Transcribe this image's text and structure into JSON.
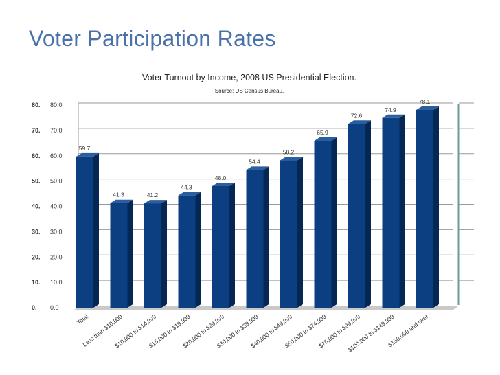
{
  "slide": {
    "title": "Voter Participation Rates"
  },
  "chart_data": {
    "type": "bar",
    "title": "Voter Turnout by Income, 2008 US Presidential Election.",
    "subtitle": "Source: US Census Bureau.",
    "xlabel": "",
    "ylabel": "",
    "ylim": [
      0,
      80
    ],
    "grid": true,
    "inner_ticks": [
      "0.0",
      "10.0",
      "20.0",
      "30.0",
      "40.0",
      "50.0",
      "60.0",
      "70.0",
      "80.0"
    ],
    "outer_ticks": [
      "0.",
      "10.",
      "20.",
      "30.",
      "40.",
      "50.",
      "60.",
      "70.",
      "80."
    ],
    "categories": [
      "Total",
      "Less than $10,000",
      "$10,000 to $14,999",
      "$15,000 to $19,999",
      "$20,000 to $29,999",
      "$30,000 to $39,999",
      "$40,000 to $49,999",
      "$50,000 to $74,999",
      "$75,000 to $99,999",
      "$100,000 to $149,999",
      "$150,000 and over"
    ],
    "values": [
      59.7,
      41.3,
      41.2,
      44.3,
      48.0,
      54.4,
      58.2,
      65.9,
      72.6,
      74.9,
      78.1
    ],
    "value_labels": [
      "59.7",
      "41.3",
      "41.2",
      "44.3",
      "48.0",
      "54.4",
      "58.2",
      "65.9",
      "72.6",
      "74.9",
      "78.1"
    ],
    "colors": {
      "bar_front": "#0c3f82",
      "bar_side": "#062753",
      "bar_top": "#2b5e9e",
      "grid": "#9a9a9a",
      "floor": "#c9c9c9"
    }
  }
}
